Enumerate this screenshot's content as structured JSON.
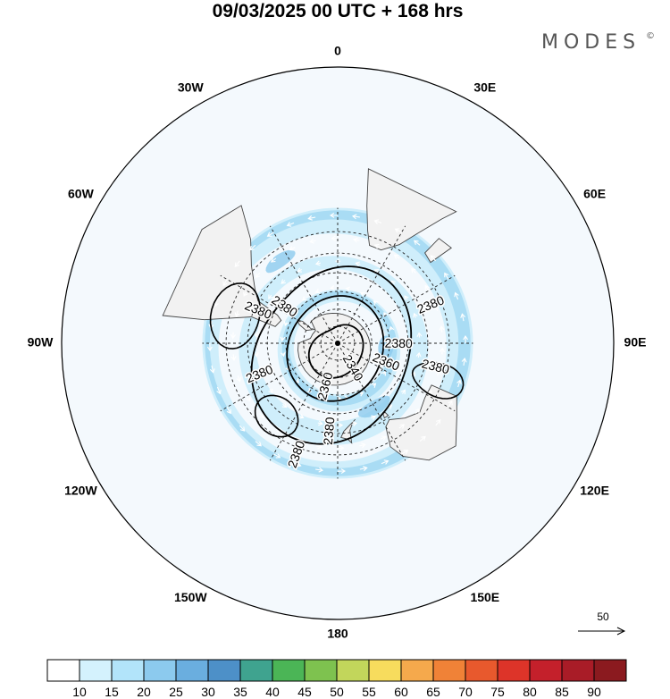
{
  "header": {
    "title": "09/03/2025  00 UTC  + 168 hrs",
    "brand": "MODES",
    "brand_mark": "©"
  },
  "map": {
    "projection": "south-polar-stereographic",
    "colors": {
      "disk_fill": "#f4f9fd",
      "land_fill": "#f2f2f2",
      "coast": "#444444",
      "wind_band_1": "#cfeefb",
      "wind_band_2": "#a9dcf4",
      "wind_band_3": "#8ccaee"
    },
    "longitude_labels": [
      {
        "lon": 0,
        "text": "0"
      },
      {
        "lon": 30,
        "text": "30E"
      },
      {
        "lon": 60,
        "text": "60E"
      },
      {
        "lon": 90,
        "text": "90E"
      },
      {
        "lon": 120,
        "text": "120E"
      },
      {
        "lon": 150,
        "text": "150E"
      },
      {
        "lon": 180,
        "text": "180"
      },
      {
        "lon": -150,
        "text": "150W"
      },
      {
        "lon": -120,
        "text": "120W"
      },
      {
        "lon": -90,
        "text": "90W"
      },
      {
        "lon": -60,
        "text": "60W"
      },
      {
        "lon": -30,
        "text": "30W"
      }
    ],
    "contours": [
      {
        "value": "2340"
      },
      {
        "value": "2360"
      },
      {
        "value": "2380"
      }
    ],
    "contour_labels": [
      {
        "text": "2340",
        "lon": 150,
        "lat": -73
      },
      {
        "text": "2360",
        "lon": 112,
        "lat": -60
      },
      {
        "text": "2360",
        "lon": -165,
        "lat": -64
      },
      {
        "text": "2380",
        "lon": 91,
        "lat": -55
      },
      {
        "text": "2380",
        "lon": 104,
        "lat": -35
      },
      {
        "text": "2380",
        "lon": 68,
        "lat": -35
      },
      {
        "text": "2380",
        "lon": -68,
        "lat": -42
      },
      {
        "text": "2380",
        "lon": -56,
        "lat": -53
      },
      {
        "text": "2380",
        "lon": -112,
        "lat": -43
      },
      {
        "text": "2380",
        "lon": -175,
        "lat": -41
      },
      {
        "text": "2380",
        "lon": -160,
        "lat": -27
      }
    ],
    "reference_vector": {
      "label": "50"
    }
  },
  "colorbar": {
    "colors": [
      "#ffffff",
      "#d4f2fd",
      "#b2e4fa",
      "#8ccaee",
      "#6aaedf",
      "#4d90c8",
      "#3fa38f",
      "#4bb556",
      "#7ec24f",
      "#c2d65b",
      "#f7dc5d",
      "#f5a94c",
      "#f08237",
      "#e8592d",
      "#dd3429",
      "#c4202b",
      "#a91c27",
      "#8b1a1f"
    ],
    "labels": [
      "10",
      "15",
      "20",
      "25",
      "30",
      "35",
      "40",
      "45",
      "50",
      "55",
      "60",
      "65",
      "70",
      "75",
      "80",
      "85",
      "90"
    ]
  }
}
